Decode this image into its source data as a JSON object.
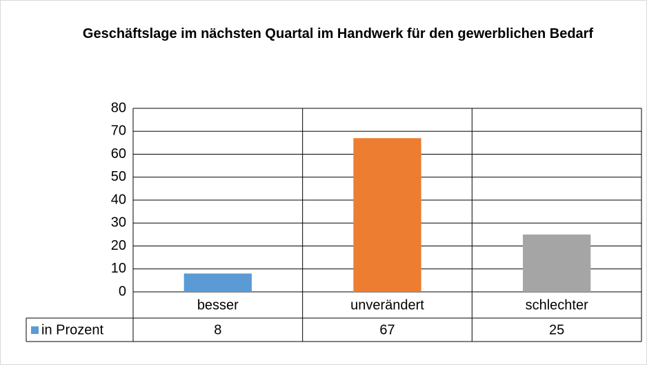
{
  "chart_data": {
    "type": "bar",
    "title": "Geschäftslage im nächsten Quartal im Handwerk für den gewerblichen Bedarf",
    "categories": [
      "besser",
      "unverändert",
      "schlechter"
    ],
    "series": [
      {
        "name": "in Prozent",
        "color": "#5b9bd5",
        "values": [
          8,
          67,
          25
        ]
      }
    ],
    "colors": [
      "#5b9bd5",
      "#ed7d31",
      "#a5a5a5"
    ],
    "ylim": [
      0,
      80
    ],
    "yticks": [
      0,
      10,
      20,
      30,
      40,
      50,
      60,
      70,
      80
    ],
    "grid": true
  }
}
